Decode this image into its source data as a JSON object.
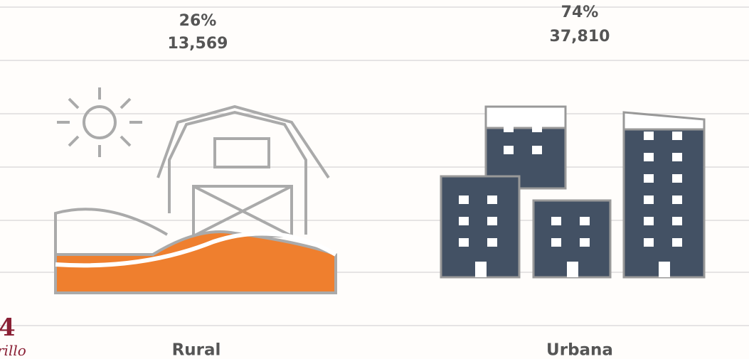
{
  "items": [
    {
      "label": "Rural",
      "percent": "26%",
      "count": "13,569"
    },
    {
      "label": "Urbana",
      "percent": "74%",
      "count": "37,810"
    }
  ],
  "logo": {
    "number": "4",
    "text": "rillo"
  }
}
